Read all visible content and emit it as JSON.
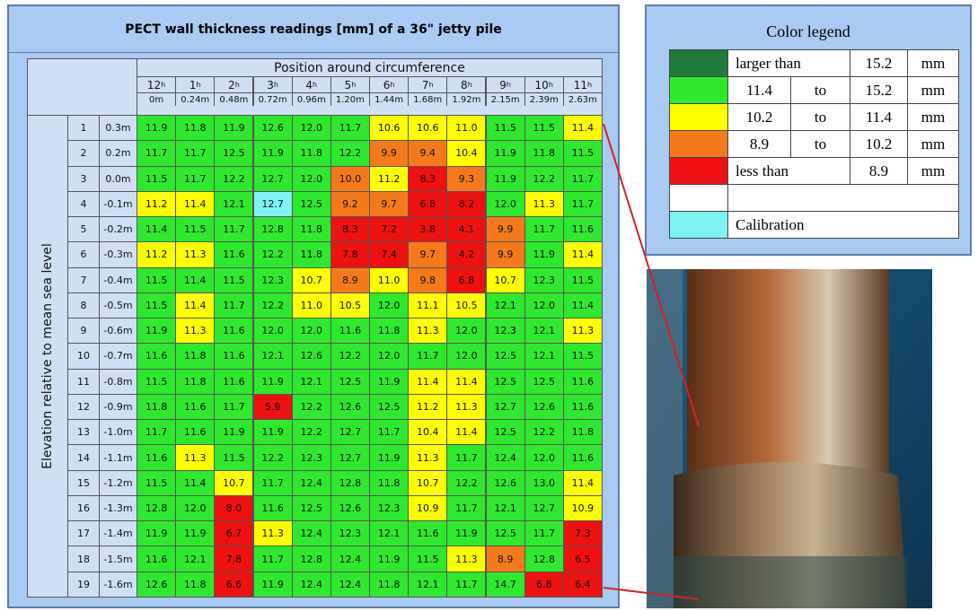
{
  "table": {
    "title": "PECT wall thickness readings [mm] of a 36\" jetty pile",
    "header": "Position around circumference",
    "hours": [
      "12",
      "1",
      "2",
      "3",
      "4",
      "5",
      "6",
      "7",
      "8",
      "9",
      "10",
      "11"
    ],
    "hour_suffix": "h",
    "positions": [
      "0m",
      "0.24m",
      "0.48m",
      "0.72m",
      "0.96m",
      "1.20m",
      "1.44m",
      "1.68m",
      "1.92m",
      "2.15m",
      "2.39m",
      "2.63m"
    ],
    "side_label": "Elevation relative to mean sea level",
    "rows": [
      {
        "index": "1",
        "elevation": "0.3m",
        "values": [
          "11.9",
          "11.8",
          "11.9",
          "12.6",
          "12.0",
          "11.7",
          "10.6",
          "10.6",
          "11.0",
          "11.5",
          "11.5",
          "11.4"
        ],
        "levels": [
          1,
          1,
          1,
          1,
          1,
          1,
          2,
          2,
          2,
          1,
          1,
          2
        ]
      },
      {
        "index": "2",
        "elevation": "0.2m",
        "values": [
          "11.7",
          "11.7",
          "12.5",
          "11.9",
          "11.8",
          "12.2",
          "9.9",
          "9.4",
          "10.4",
          "11.9",
          "11.8",
          "11.5"
        ],
        "levels": [
          1,
          1,
          1,
          1,
          1,
          1,
          3,
          3,
          2,
          1,
          1,
          1
        ]
      },
      {
        "index": "3",
        "elevation": "0.0m",
        "values": [
          "11.5",
          "11.7",
          "12.2",
          "12.7",
          "12.0",
          "10.0",
          "11.2",
          "8.3",
          "9.3",
          "11.9",
          "12.2",
          "11.7"
        ],
        "levels": [
          1,
          1,
          1,
          1,
          1,
          3,
          2,
          4,
          3,
          1,
          1,
          1
        ]
      },
      {
        "index": "4",
        "elevation": "-0.1m",
        "values": [
          "11.2",
          "11.4",
          "12.1",
          "12.7",
          "12.5",
          "9.2",
          "9.7",
          "6.8",
          "8.2",
          "12.0",
          "11.3",
          "11.7"
        ],
        "levels": [
          2,
          2,
          1,
          6,
          1,
          3,
          3,
          4,
          4,
          1,
          2,
          1
        ]
      },
      {
        "index": "5",
        "elevation": "-0.2m",
        "values": [
          "11.4",
          "11.5",
          "11.7",
          "12.8",
          "11.8",
          "8.3",
          "7.2",
          "3.8",
          "4.1",
          "9.9",
          "11.7",
          "11.6"
        ],
        "levels": [
          1,
          1,
          1,
          1,
          1,
          4,
          4,
          4,
          4,
          3,
          1,
          1
        ]
      },
      {
        "index": "6",
        "elevation": "-0.3m",
        "values": [
          "11.2",
          "11.3",
          "11.6",
          "12.2",
          "11.8",
          "7.8",
          "7.4",
          "9.7",
          "4.2",
          "9.9",
          "11.9",
          "11.4"
        ],
        "levels": [
          2,
          2,
          1,
          1,
          1,
          4,
          4,
          3,
          4,
          3,
          1,
          2
        ]
      },
      {
        "index": "7",
        "elevation": "-0.4m",
        "values": [
          "11.5",
          "11.4",
          "11.5",
          "12.3",
          "10.7",
          "8.9",
          "11.0",
          "9.8",
          "6.8",
          "10.7",
          "12.3",
          "11.5"
        ],
        "levels": [
          1,
          1,
          1,
          1,
          2,
          3,
          2,
          3,
          4,
          2,
          1,
          1
        ]
      },
      {
        "index": "8",
        "elevation": "-0.5m",
        "values": [
          "11.5",
          "11.4",
          "11.7",
          "12.2",
          "11.0",
          "10.5",
          "12.0",
          "11.1",
          "10.5",
          "12.1",
          "12.0",
          "11.4"
        ],
        "levels": [
          1,
          2,
          1,
          1,
          2,
          2,
          1,
          2,
          2,
          1,
          1,
          1
        ]
      },
      {
        "index": "9",
        "elevation": "-0.6m",
        "values": [
          "11.9",
          "11.3",
          "11.6",
          "12.0",
          "12.0",
          "11.6",
          "11.8",
          "11.3",
          "12.0",
          "12.3",
          "12.1",
          "11.3"
        ],
        "levels": [
          1,
          2,
          1,
          1,
          1,
          1,
          1,
          2,
          1,
          1,
          1,
          2
        ]
      },
      {
        "index": "10",
        "elevation": "-0.7m",
        "values": [
          "11.6",
          "11.8",
          "11.6",
          "12.1",
          "12.6",
          "12.2",
          "12.0",
          "11.7",
          "12.0",
          "12.5",
          "12.1",
          "11.5"
        ],
        "levels": [
          1,
          1,
          1,
          1,
          1,
          1,
          1,
          1,
          1,
          1,
          1,
          1
        ]
      },
      {
        "index": "11",
        "elevation": "-0.8m",
        "values": [
          "11.5",
          "11.8",
          "11.6",
          "11.9",
          "12.1",
          "12.5",
          "11.9",
          "11.4",
          "11.4",
          "12.5",
          "12.5",
          "11.6"
        ],
        "levels": [
          1,
          1,
          1,
          1,
          1,
          1,
          1,
          2,
          2,
          1,
          1,
          1
        ]
      },
      {
        "index": "12",
        "elevation": "-0.9m",
        "values": [
          "11.8",
          "11.6",
          "11.7",
          "5.9",
          "12.2",
          "12.6",
          "12.5",
          "11.2",
          "11.3",
          "12.7",
          "12.6",
          "11.6"
        ],
        "levels": [
          1,
          1,
          1,
          4,
          1,
          1,
          1,
          2,
          2,
          1,
          1,
          1
        ]
      },
      {
        "index": "13",
        "elevation": "-1.0m",
        "values": [
          "11.7",
          "11.6",
          "11.9",
          "11.9",
          "12.2",
          "12.7",
          "11.7",
          "10.4",
          "11.4",
          "12.5",
          "12.2",
          "11.8"
        ],
        "levels": [
          1,
          1,
          1,
          1,
          1,
          1,
          1,
          2,
          2,
          1,
          1,
          1
        ]
      },
      {
        "index": "14",
        "elevation": "-1.1m",
        "values": [
          "11.6",
          "11.3",
          "11.5",
          "12.2",
          "12.3",
          "12.7",
          "11.9",
          "11.3",
          "11.7",
          "12.4",
          "12.0",
          "11.6"
        ],
        "levels": [
          1,
          2,
          1,
          1,
          1,
          1,
          1,
          2,
          1,
          1,
          1,
          1
        ]
      },
      {
        "index": "15",
        "elevation": "-1.2m",
        "values": [
          "11.5",
          "11.4",
          "10.7",
          "11.7",
          "12.4",
          "12.8",
          "11.8",
          "10.7",
          "12.2",
          "12.6",
          "13.0",
          "11.4"
        ],
        "levels": [
          1,
          1,
          2,
          1,
          1,
          1,
          1,
          2,
          1,
          1,
          1,
          2
        ]
      },
      {
        "index": "16",
        "elevation": "-1.3m",
        "values": [
          "12.8",
          "12.0",
          "8.0",
          "11.6",
          "12.5",
          "12.6",
          "12.3",
          "10.9",
          "11.7",
          "12.1",
          "12.7",
          "10.9"
        ],
        "levels": [
          1,
          1,
          4,
          1,
          1,
          1,
          1,
          2,
          1,
          1,
          1,
          2
        ]
      },
      {
        "index": "17",
        "elevation": "-1.4m",
        "values": [
          "11.9",
          "11.9",
          "6.7",
          "11.3",
          "12.4",
          "12.3",
          "12.1",
          "11.6",
          "11.9",
          "12.5",
          "11.7",
          "7.3"
        ],
        "levels": [
          1,
          1,
          4,
          2,
          1,
          1,
          1,
          1,
          1,
          1,
          1,
          4
        ]
      },
      {
        "index": "18",
        "elevation": "-1.5m",
        "values": [
          "11.6",
          "12.1",
          "7.8",
          "11.7",
          "12.8",
          "12.4",
          "11.9",
          "11.5",
          "11.3",
          "8.9",
          "12.8",
          "6.5"
        ],
        "levels": [
          1,
          1,
          4,
          1,
          1,
          1,
          1,
          1,
          2,
          3,
          1,
          4
        ]
      },
      {
        "index": "19",
        "elevation": "-1.6m",
        "values": [
          "12.6",
          "11.8",
          "6.6",
          "11.9",
          "12.4",
          "12.4",
          "11.8",
          "12.1",
          "11.7",
          "14.7",
          "6.8",
          "6.4"
        ],
        "levels": [
          1,
          1,
          4,
          1,
          1,
          1,
          1,
          1,
          1,
          1,
          4,
          4
        ]
      }
    ]
  },
  "legend": {
    "title": "Color legend",
    "rows": [
      {
        "color": "#1f7a3c",
        "cells": [
          "larger than",
          "15.2",
          "mm"
        ]
      },
      {
        "color": "#2ee82e",
        "cells": [
          "11.4",
          "to",
          "15.2",
          "mm"
        ]
      },
      {
        "color": "#ffff00",
        "cells": [
          "10.2",
          "to",
          "11.4",
          "mm"
        ]
      },
      {
        "color": "#f57a1c",
        "cells": [
          "8.9",
          "to",
          "10.2",
          "mm"
        ]
      },
      {
        "color": "#ee1111",
        "cells": [
          "less than",
          "8.9",
          "mm"
        ]
      },
      {
        "color": "#ffffff",
        "cells": []
      },
      {
        "color": "#7ef2f5",
        "cells": [
          "Calibration"
        ]
      }
    ]
  }
}
